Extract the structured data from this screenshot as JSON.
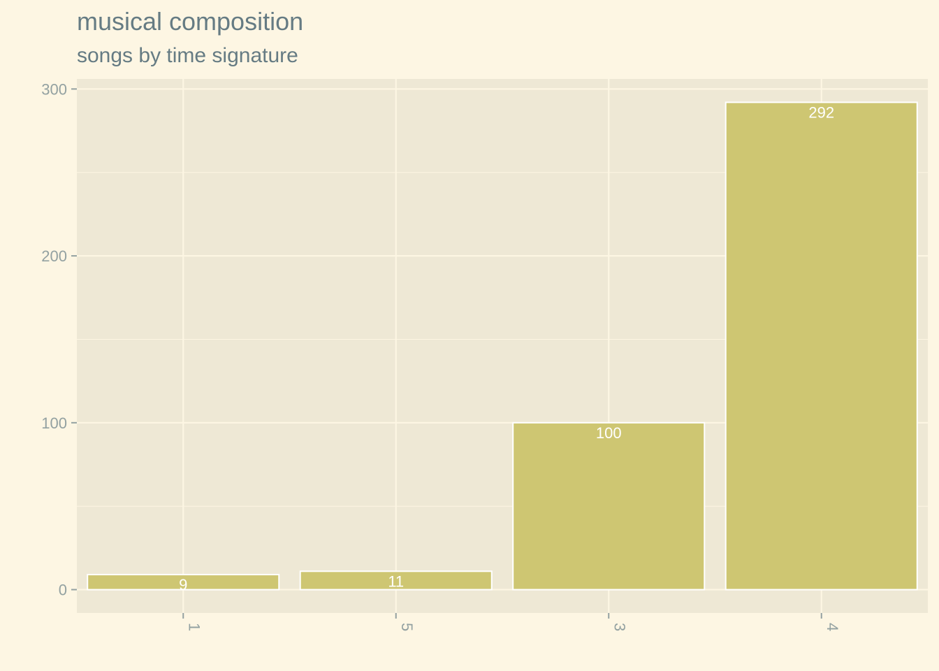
{
  "chart_data": {
    "type": "bar",
    "title": "musical composition",
    "subtitle": "songs by time signature",
    "xlabel": "",
    "ylabel": "",
    "categories": [
      "1",
      "5",
      "3",
      "4"
    ],
    "values": [
      9,
      11,
      100,
      292
    ],
    "ylim": [
      -14,
      306
    ],
    "yticks": [
      0,
      100,
      200,
      300
    ],
    "grid": true,
    "x_tick_rotation": "vertical",
    "colors": {
      "page_background": "#fdf6e3",
      "panel_background": "#eee8d5",
      "bar_fill": "#cec672",
      "bar_outline": "#ffffff",
      "grid": "#fdf6e3",
      "text": "#657b83",
      "axis_text": "#93a1a1"
    }
  }
}
